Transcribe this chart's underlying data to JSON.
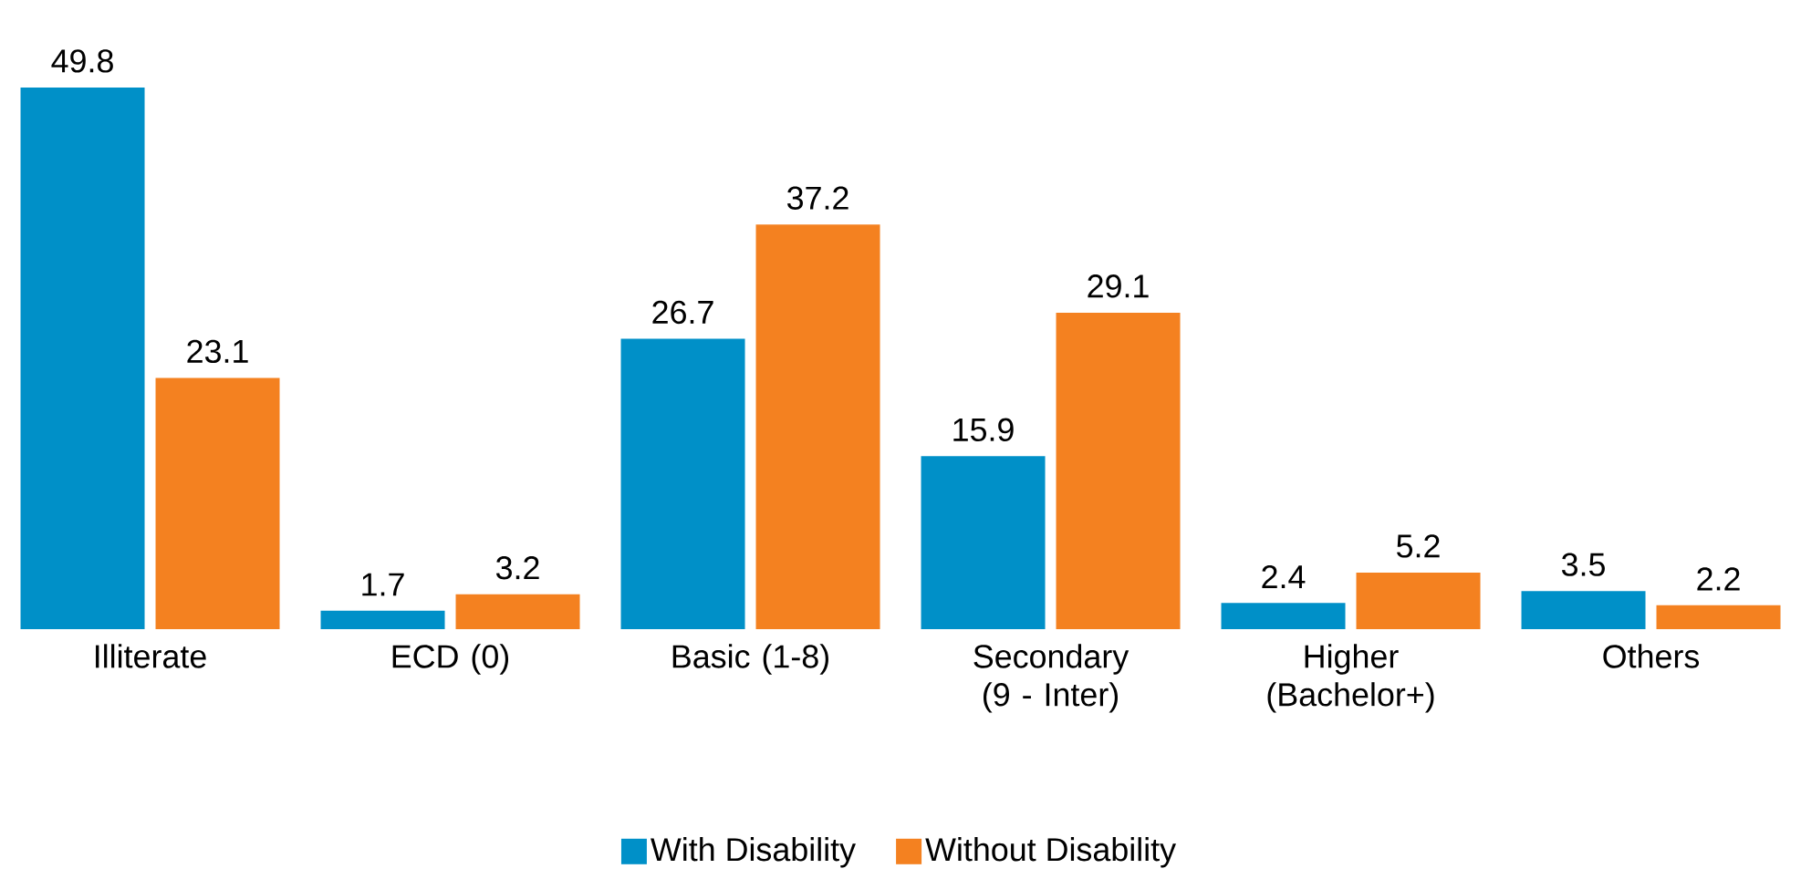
{
  "chart_data": {
    "type": "bar",
    "categories": [
      "Illiterate",
      "ECD (0)",
      "Basic (1-8)",
      "Secondary (9 - Inter)",
      "Higher (Bachelor+)",
      "Others"
    ],
    "series": [
      {
        "name": "With Disability",
        "color": "#0090c8",
        "values": [
          49.8,
          1.7,
          26.7,
          15.9,
          2.4,
          3.5
        ]
      },
      {
        "name": "Without Disability",
        "color": "#f48120",
        "values": [
          23.1,
          3.2,
          37.2,
          29.1,
          5.2,
          2.2
        ]
      }
    ],
    "data_labels": true,
    "legend": "bottom"
  }
}
